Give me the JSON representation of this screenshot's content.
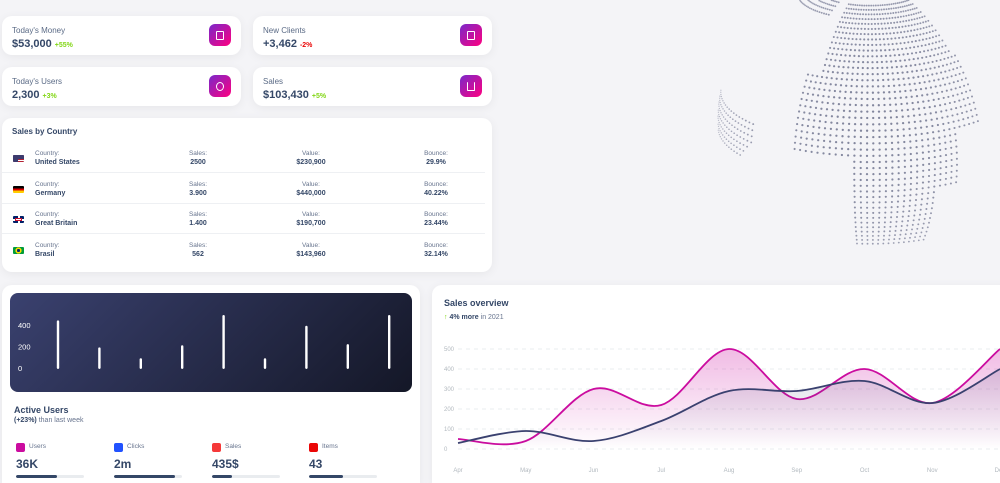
{
  "stats": [
    {
      "label": "Today's Money",
      "value": "$53,000",
      "change": "+55%",
      "trend": "positive",
      "icon": "money-icon"
    },
    {
      "label": "New Clients",
      "value": "+3,462",
      "change": "-2%",
      "trend": "negative",
      "icon": "document-icon"
    },
    {
      "label": "Today's Users",
      "value": "2,300",
      "change": "+3%",
      "trend": "positive",
      "icon": "globe-icon"
    },
    {
      "label": "Sales",
      "value": "$103,430",
      "change": "+5%",
      "trend": "positive",
      "icon": "cart-icon"
    }
  ],
  "sales_by_country": {
    "title": "Sales by Country",
    "headers": {
      "country": "Country:",
      "sales": "Sales:",
      "value": "Value:",
      "bounce": "Bounce:"
    },
    "rows": [
      {
        "country": "United States",
        "sales": "2500",
        "value": "$230,900",
        "bounce": "29.9%",
        "flag": "us-flag-icon"
      },
      {
        "country": "Germany",
        "sales": "3.900",
        "value": "$440,000",
        "bounce": "40.22%",
        "flag": "de-flag-icon"
      },
      {
        "country": "Great Britain",
        "sales": "1.400",
        "value": "$190,700",
        "bounce": "23.44%",
        "flag": "gb-flag-icon"
      },
      {
        "country": "Brasil",
        "sales": "562",
        "value": "$143,960",
        "bounce": "32.14%",
        "flag": "br-flag-icon"
      }
    ]
  },
  "active_users": {
    "title": "Active Users",
    "change": "(+23%)",
    "subtitle": " than last week",
    "items": [
      {
        "label": "Users",
        "value": "36K",
        "progress": 0.6,
        "color": "#cb0c9f"
      },
      {
        "label": "Clicks",
        "value": "2m",
        "progress": 0.9,
        "color": "#2152ff"
      },
      {
        "label": "Sales",
        "value": "435$",
        "progress": 0.3,
        "color": "#f53939"
      },
      {
        "label": "Items",
        "value": "43",
        "progress": 0.5,
        "color": "#ea0606"
      }
    ]
  },
  "sales_overview": {
    "title": "Sales overview",
    "change": "4% more",
    "period": " in 2021"
  },
  "chart_data": [
    {
      "type": "bar",
      "categories": [
        "",
        "",
        "",
        "",
        "",
        "",
        "",
        "",
        "",
        ""
      ],
      "values": [
        450,
        200,
        100,
        220,
        500,
        100,
        400,
        230,
        500,
        0
      ],
      "yticks": [
        0,
        200,
        400
      ],
      "ylim": [
        0,
        500
      ],
      "bar_color": "#ffffff"
    },
    {
      "type": "area",
      "categories": [
        "Apr",
        "May",
        "Jun",
        "Jul",
        "Aug",
        "Sep",
        "Oct",
        "Nov",
        "Dec"
      ],
      "series": [
        {
          "values": [
            50,
            40,
            300,
            220,
            500,
            250,
            400,
            230,
            500
          ],
          "color": "#cb0c9f"
        },
        {
          "values": [
            30,
            90,
            40,
            140,
            290,
            290,
            340,
            230,
            400
          ],
          "color": "#3a416f"
        }
      ],
      "yticks": [
        0,
        100,
        200,
        300,
        400,
        500
      ],
      "ylim": [
        0,
        500
      ],
      "grid": true
    }
  ]
}
